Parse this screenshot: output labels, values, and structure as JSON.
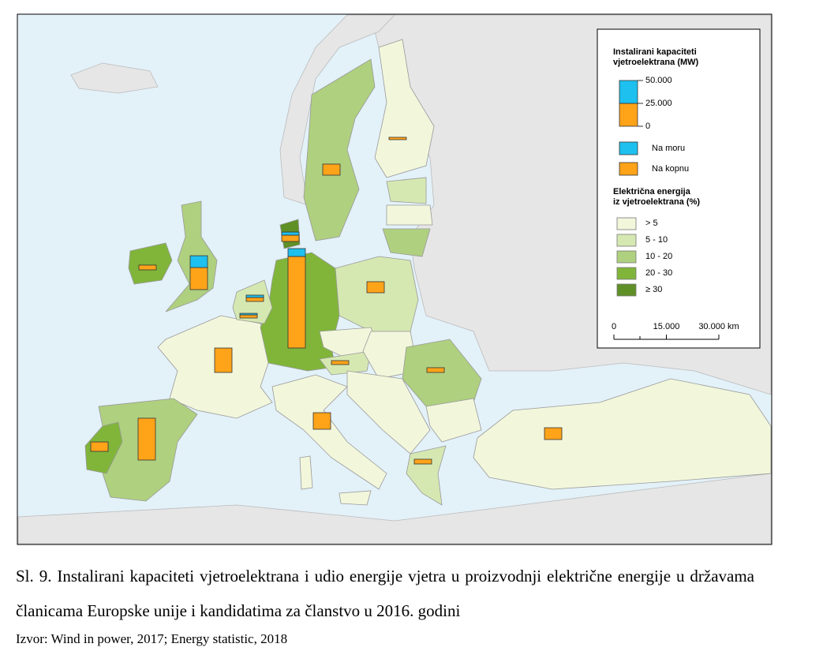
{
  "map": {
    "legend": {
      "capacity_title": [
        "Instalirani kapaciteti",
        "vjetroelektrana (MW)"
      ],
      "capacity_ticks": [
        {
          "value": 50000,
          "label": "50.000"
        },
        {
          "value": 25000,
          "label": "25.000"
        },
        0
      ],
      "offshore": {
        "label": "Na moru",
        "color": "#1ec0ef"
      },
      "onshore": {
        "label": "Na kopnu",
        "color": "#ffa319"
      },
      "share_title": [
        "Električna energija",
        "iz vjetroelektrana (%)"
      ],
      "classes": [
        {
          "label": "> 5",
          "color": "#f2f7dc"
        },
        {
          "label": "5 - 10",
          "color": "#d6e8b2"
        },
        {
          "label": "10 - 20",
          "color": "#afd07f"
        },
        {
          "label": "20 - 30",
          "color": "#80b53a"
        },
        {
          "label": "≥ 30",
          "color": "#5f8f27"
        }
      ],
      "scale_ticks": [
        0,
        {
          "value": 15000,
          "label": "15.000"
        },
        {
          "value": 30000,
          "label": "30.000 km"
        }
      ]
    },
    "bars": [
      {
        "onshore": 100000,
        "offshore": 8600
      },
      {
        "onshore": 45700
      },
      {
        "onshore": 24100,
        "offshore": 12900
      },
      {
        "onshore": 26700
      },
      {
        "onshore": 18100
      },
      {
        "onshore": 12100
      },
      {
        "onshore": 10300
      },
      {
        "onshore": 12100
      },
      {
        "onshore": 12900
      },
      {
        "onshore": 6900,
        "offshore": 3400
      },
      {
        "onshore": 4300,
        "offshore": 2600
      },
      {
        "onshore": 3400,
        "offshore": 1700
      },
      {
        "onshore": 5200
      },
      {
        "onshore": 5200
      },
      {
        "onshore": 4300
      },
      {
        "onshore": 5200
      },
      {
        "onshore": 2600
      }
    ]
  },
  "caption": {
    "text": "Sl. 9. Instalirani kapaciteti vjetroelektrana i udio energije vjetra u proizvodnji električne energije u državama članicama Europske unije i kandidatima za članstvo u 2016. godini",
    "source": "Izvor:  Wind in power, 2017; Energy statistic, 2018"
  }
}
